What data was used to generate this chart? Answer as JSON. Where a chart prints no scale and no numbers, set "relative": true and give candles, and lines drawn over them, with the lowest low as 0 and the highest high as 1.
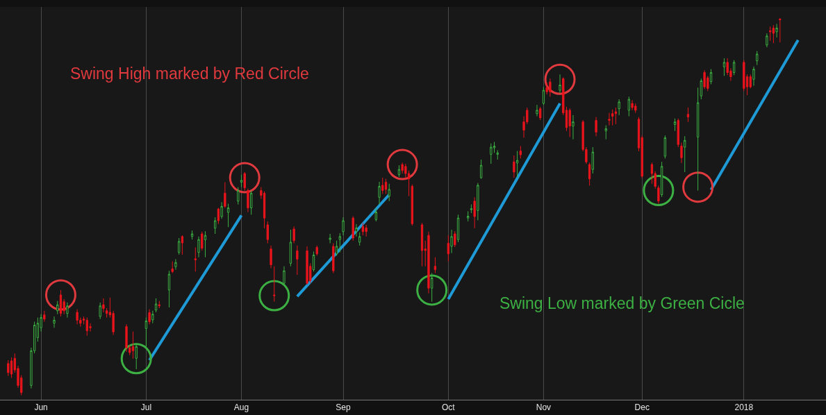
{
  "chart_data": {
    "type": "candlestick",
    "relative": true,
    "grid": "x",
    "annotations": [
      "Swing High marked by Red Circle",
      "Swing Low marked by Green Cicle"
    ],
    "xlim": [
      "2017-05-19T12:00",
      "2018-01-26"
    ],
    "xticks": [
      {
        "value": "2017-06-01",
        "label": "Jun"
      },
      {
        "value": "2017-07-03",
        "label": "Jul"
      },
      {
        "value": "2017-08-01",
        "label": "Aug"
      },
      {
        "value": "2017-09-01",
        "label": "Sep"
      },
      {
        "value": "2017-10-03",
        "label": "Oct"
      },
      {
        "value": "2017-11-01",
        "label": "Nov"
      },
      {
        "value": "2017-12-01",
        "label": "Dec"
      },
      {
        "value": "2018-01-01",
        "label": "2018"
      }
    ],
    "x": [
      "2017-05-22",
      "2017-05-23",
      "2017-05-24",
      "2017-05-25",
      "2017-05-26",
      "2017-05-29",
      "2017-05-30",
      "2017-05-31",
      "2017-06-01",
      "2017-06-02",
      "2017-06-05",
      "2017-06-06",
      "2017-06-07",
      "2017-06-08",
      "2017-06-09",
      "2017-06-12",
      "2017-06-13",
      "2017-06-14",
      "2017-06-15",
      "2017-06-16",
      "2017-06-19",
      "2017-06-20",
      "2017-06-21",
      "2017-06-22",
      "2017-06-23",
      "2017-06-27",
      "2017-06-28",
      "2017-06-29",
      "2017-06-30",
      "2017-07-03",
      "2017-07-04",
      "2017-07-05",
      "2017-07-06",
      "2017-07-07",
      "2017-07-10",
      "2017-07-11",
      "2017-07-12",
      "2017-07-13",
      "2017-07-14",
      "2017-07-17",
      "2017-07-18",
      "2017-07-19",
      "2017-07-20",
      "2017-07-21",
      "2017-07-24",
      "2017-07-25",
      "2017-07-26",
      "2017-07-27",
      "2017-07-28",
      "2017-07-31",
      "2017-08-01",
      "2017-08-02",
      "2017-08-03",
      "2017-08-04",
      "2017-08-07",
      "2017-08-08",
      "2017-08-09",
      "2017-08-10",
      "2017-08-11",
      "2017-08-14",
      "2017-08-16",
      "2017-08-17",
      "2017-08-18",
      "2017-08-21",
      "2017-08-22",
      "2017-08-23",
      "2017-08-24",
      "2017-08-28",
      "2017-08-29",
      "2017-08-30",
      "2017-08-31",
      "2017-09-01",
      "2017-09-04",
      "2017-09-05",
      "2017-09-06",
      "2017-09-07",
      "2017-09-08",
      "2017-09-11",
      "2017-09-12",
      "2017-09-13",
      "2017-09-14",
      "2017-09-15",
      "2017-09-18",
      "2017-09-19",
      "2017-09-20",
      "2017-09-21",
      "2017-09-22",
      "2017-09-25",
      "2017-09-26",
      "2017-09-27",
      "2017-09-28",
      "2017-09-29",
      "2017-10-03",
      "2017-10-04",
      "2017-10-05",
      "2017-10-06",
      "2017-10-09",
      "2017-10-10",
      "2017-10-11",
      "2017-10-12",
      "2017-10-13",
      "2017-10-16",
      "2017-10-17",
      "2017-10-18",
      "2017-10-23",
      "2017-10-24",
      "2017-10-25",
      "2017-10-26",
      "2017-10-27",
      "2017-10-30",
      "2017-10-31",
      "2017-11-01",
      "2017-11-02",
      "2017-11-03",
      "2017-11-06",
      "2017-11-07",
      "2017-11-08",
      "2017-11-09",
      "2017-11-10",
      "2017-11-13",
      "2017-11-14",
      "2017-11-15",
      "2017-11-16",
      "2017-11-17",
      "2017-11-20",
      "2017-11-21",
      "2017-11-22",
      "2017-11-23",
      "2017-11-24",
      "2017-11-27",
      "2017-11-28",
      "2017-11-29",
      "2017-11-30",
      "2017-12-01",
      "2017-12-04",
      "2017-12-05",
      "2017-12-06",
      "2017-12-07",
      "2017-12-08",
      "2017-12-11",
      "2017-12-12",
      "2017-12-13",
      "2017-12-14",
      "2017-12-15",
      "2017-12-18",
      "2017-12-19",
      "2017-12-20",
      "2017-12-21",
      "2017-12-22",
      "2017-12-26",
      "2017-12-27",
      "2017-12-28",
      "2017-12-29",
      "2018-01-01",
      "2018-01-02",
      "2018-01-03",
      "2018-01-04",
      "2018-01-05",
      "2018-01-08",
      "2018-01-09",
      "2018-01-10",
      "2018-01-11",
      "2018-01-12"
    ],
    "ohlc": [
      [
        0.084,
        0.093,
        0.051,
        0.06
      ],
      [
        0.091,
        0.1,
        0.046,
        0.056
      ],
      [
        0.098,
        0.111,
        0.06,
        0.067
      ],
      [
        0.071,
        0.078,
        0.02,
        0.026
      ],
      [
        0.046,
        0.053,
        0,
        0.007
      ],
      [
        0.026,
        0.126,
        0.018,
        0.118
      ],
      [
        0.118,
        0.195,
        0.111,
        0.186
      ],
      [
        0.153,
        0.206,
        0.142,
        0.191
      ],
      [
        0.179,
        0.215,
        0.169,
        0.206
      ],
      [
        0.213,
        0.224,
        0.195,
        0.202
      ],
      [
        0.191,
        0.209,
        0.179,
        0.199
      ],
      [
        0.224,
        0.25,
        0.215,
        0.24
      ],
      [
        0.266,
        0.279,
        0.209,
        0.217
      ],
      [
        0.248,
        0.255,
        0.215,
        0.224
      ],
      [
        0.217,
        0.246,
        0.206,
        0.237
      ],
      [
        0.22,
        0.228,
        0.188,
        0.199
      ],
      [
        0.199,
        0.206,
        0.182,
        0.191
      ],
      [
        0.202,
        0.209,
        0.188,
        0.199
      ],
      [
        0.199,
        0.206,
        0.158,
        0.171
      ],
      [
        0.182,
        0.191,
        0.169,
        0.179
      ],
      [
        0.209,
        0.246,
        0.202,
        0.237
      ],
      [
        0.24,
        0.257,
        0.22,
        0.23
      ],
      [
        0.224,
        0.231,
        0.206,
        0.217
      ],
      [
        0.22,
        0.259,
        0.206,
        0.213
      ],
      [
        0.217,
        0.224,
        0.16,
        0.168
      ],
      [
        0.182,
        0.188,
        0.115,
        0.126
      ],
      [
        0.126,
        0.133,
        0.106,
        0.113
      ],
      [
        0.129,
        0.169,
        0.097,
        0.118
      ],
      [
        0.098,
        0.137,
        0.069,
        0.129
      ],
      [
        0.177,
        0.206,
        0.129,
        0.197
      ],
      [
        0.219,
        0.228,
        0.188,
        0.195
      ],
      [
        0.2,
        0.224,
        0.191,
        0.215
      ],
      [
        0.226,
        0.257,
        0.22,
        0.242
      ],
      [
        0.24,
        0.25,
        0.231,
        0.237
      ],
      [
        0.279,
        0.33,
        0.233,
        0.321
      ],
      [
        0.335,
        0.355,
        0.324,
        0.328
      ],
      [
        0.341,
        0.361,
        0.333,
        0.352
      ],
      [
        0.379,
        0.417,
        0.373,
        0.408
      ],
      [
        0.421,
        0.424,
        0.373,
        0.404
      ],
      [
        0.421,
        0.437,
        0.413,
        0.428
      ],
      [
        0.362,
        0.392,
        0.328,
        0.359
      ],
      [
        0.379,
        0.421,
        0.366,
        0.413
      ],
      [
        0.428,
        0.434,
        0.384,
        0.39
      ],
      [
        0.412,
        0.435,
        0.366,
        0.424
      ],
      [
        0.443,
        0.472,
        0.428,
        0.463
      ],
      [
        0.494,
        0.497,
        0.454,
        0.463
      ],
      [
        0.474,
        0.512,
        0.468,
        0.501
      ],
      [
        0.536,
        0.565,
        0.497,
        0.501
      ],
      [
        0.485,
        0.508,
        0.446,
        0.497
      ],
      [
        0.515,
        0.552,
        0.506,
        0.543
      ],
      [
        0.565,
        0.585,
        0.552,
        0.57
      ],
      [
        0.588,
        0.592,
        0.543,
        0.55
      ],
      [
        0.543,
        0.548,
        0.486,
        0.497
      ],
      [
        0.497,
        0.543,
        0.479,
        0.536
      ],
      [
        0.543,
        0.552,
        0.521,
        0.53
      ],
      [
        0.536,
        0.541,
        0.443,
        0.47
      ],
      [
        0.452,
        0.461,
        0.403,
        0.413
      ],
      [
        0.388,
        0.397,
        0.337,
        0.346
      ],
      [
        0.266,
        0.342,
        0.248,
        0.264
      ],
      [
        0.297,
        0.342,
        0.293,
        0.33
      ],
      [
        0.35,
        0.439,
        0.342,
        0.406
      ],
      [
        0.441,
        0.448,
        0.403,
        0.41
      ],
      [
        0.383,
        0.397,
        0.319,
        0.361
      ],
      [
        0.383,
        0.395,
        0.293,
        0.297
      ],
      [
        0.342,
        0.35,
        0.297,
        0.304
      ],
      [
        0.333,
        0.381,
        0.328,
        0.372
      ],
      [
        0.392,
        0.397,
        0.37,
        0.375
      ],
      [
        0.413,
        0.428,
        0.403,
        0.417
      ],
      [
        0.395,
        0.403,
        0.324,
        0.33
      ],
      [
        0.375,
        0.41,
        0.37,
        0.395
      ],
      [
        0.413,
        0.43,
        0.379,
        0.421
      ],
      [
        0.434,
        0.472,
        0.424,
        0.463
      ],
      [
        0.47,
        0.475,
        0.41,
        0.417
      ],
      [
        0.434,
        0.454,
        0.421,
        0.444
      ],
      [
        0.406,
        0.432,
        0.397,
        0.421
      ],
      [
        0.448,
        0.457,
        0.424,
        0.434
      ],
      [
        0.444,
        0.452,
        0.421,
        0.434
      ],
      [
        0.466,
        0.497,
        0.461,
        0.486
      ],
      [
        0.525,
        0.566,
        0.506,
        0.554
      ],
      [
        0.557,
        0.577,
        0.534,
        0.543
      ],
      [
        0.565,
        0.574,
        0.534,
        0.546
      ],
      [
        0.528,
        0.561,
        0.515,
        0.546
      ],
      [
        0.585,
        0.61,
        0.579,
        0.599
      ],
      [
        0.612,
        0.617,
        0.588,
        0.596
      ],
      [
        0.607,
        0.614,
        0.574,
        0.588
      ],
      [
        0.588,
        0.596,
        0.528,
        0.574
      ],
      [
        0.554,
        0.559,
        0.45,
        0.455
      ],
      [
        0.452,
        0.457,
        0.342,
        0.384
      ],
      [
        0.388,
        0.41,
        0.342,
        0.384
      ],
      [
        0.424,
        0.434,
        0.27,
        0.284
      ],
      [
        0.284,
        0.324,
        0.248,
        0.311
      ],
      [
        0.342,
        0.366,
        0.324,
        0.333
      ],
      [
        0.403,
        0.424,
        0.355,
        0.375
      ],
      [
        0.395,
        0.439,
        0.377,
        0.421
      ],
      [
        0.428,
        0.435,
        0.393,
        0.399
      ],
      [
        0.413,
        0.479,
        0.406,
        0.47
      ],
      [
        0.47,
        0.488,
        0.461,
        0.475
      ],
      [
        0.492,
        0.506,
        0.483,
        0.495
      ],
      [
        0.515,
        0.525,
        0.443,
        0.474
      ],
      [
        0.49,
        0.563,
        0.464,
        0.557
      ],
      [
        0.577,
        0.625,
        0.574,
        0.61
      ],
      [
        0.639,
        0.668,
        0.614,
        0.658
      ],
      [
        0.656,
        0.672,
        0.643,
        0.661
      ],
      [
        0.639,
        0.65,
        0.625,
        0.643
      ],
      [
        0.619,
        0.636,
        0.577,
        0.592
      ],
      [
        0.616,
        0.648,
        0.577,
        0.623
      ],
      [
        0.648,
        0.661,
        0.628,
        0.638
      ],
      [
        0.725,
        0.74,
        0.683,
        0.703
      ],
      [
        0.756,
        0.763,
        0.719,
        0.725
      ],
      [
        0.747,
        0.77,
        0.74,
        0.756
      ],
      [
        0.76,
        0.765,
        0.73,
        0.736
      ],
      [
        0.774,
        0.818,
        0.77,
        0.809
      ],
      [
        0.816,
        0.829,
        0.798,
        0.805
      ],
      [
        0.831,
        0.84,
        0.792,
        0.805
      ],
      [
        0.809,
        0.851,
        0.801,
        0.823
      ],
      [
        0.84,
        0.843,
        0.743,
        0.749
      ],
      [
        0.756,
        0.765,
        0.701,
        0.71
      ],
      [
        0.756,
        0.761,
        0.685,
        0.714
      ],
      [
        0.714,
        0.743,
        0.679,
        0.725
      ],
      [
        0.725,
        0.73,
        0.647,
        0.652
      ],
      [
        0.652,
        0.658,
        0.614,
        0.619
      ],
      [
        0.612,
        0.617,
        0.556,
        0.574
      ],
      [
        0.599,
        0.658,
        0.588,
        0.645
      ],
      [
        0.729,
        0.738,
        0.687,
        0.698
      ],
      [
        0.701,
        0.716,
        0.679,
        0.707
      ],
      [
        0.732,
        0.749,
        0.716,
        0.729
      ],
      [
        0.747,
        0.758,
        0.716,
        0.74
      ],
      [
        0.752,
        0.763,
        0.719,
        0.747
      ],
      [
        0.76,
        0.785,
        0.743,
        0.778
      ],
      [
        0.756,
        0.792,
        0.74,
        0.785
      ],
      [
        0.774,
        0.783,
        0.756,
        0.763
      ],
      [
        0.767,
        0.774,
        0.749,
        0.756
      ],
      [
        0.732,
        0.738,
        0.647,
        0.656
      ],
      [
        0.683,
        0.689,
        0.576,
        0.581
      ],
      [
        0.612,
        0.617,
        0.561,
        0.588
      ],
      [
        0.588,
        0.594,
        0.548,
        0.554
      ],
      [
        0.55,
        0.556,
        0.508,
        0.515
      ],
      [
        0.532,
        0.619,
        0.526,
        0.607
      ],
      [
        0.634,
        0.689,
        0.628,
        0.683
      ],
      [
        0.718,
        0.734,
        0.701,
        0.725
      ],
      [
        0.729,
        0.734,
        0.658,
        0.665
      ],
      [
        0.661,
        0.67,
        0.616,
        0.63
      ],
      [
        0.658,
        0.687,
        0.592,
        0.676
      ],
      [
        0.745,
        0.763,
        0.725,
        0.738
      ],
      [
        0.685,
        0.816,
        0.543,
        0.776
      ],
      [
        0.794,
        0.84,
        0.785,
        0.834
      ],
      [
        0.856,
        0.862,
        0.812,
        0.818
      ],
      [
        0.842,
        0.847,
        0.807,
        0.814
      ],
      [
        0.832,
        0.865,
        0.825,
        0.856
      ],
      [
        0.871,
        0.894,
        0.847,
        0.883
      ],
      [
        0.883,
        0.894,
        0.849,
        0.856
      ],
      [
        0.86,
        0.867,
        0.834,
        0.845
      ],
      [
        0.856,
        0.889,
        0.849,
        0.883
      ],
      [
        0.883,
        0.889,
        0.807,
        0.814
      ],
      [
        0.845,
        0.851,
        0.796,
        0.818
      ],
      [
        0.845,
        0.851,
        0.814,
        0.818
      ],
      [
        0.838,
        0.872,
        0.821,
        0.865
      ],
      [
        0.887,
        0.913,
        0.876,
        0.905
      ],
      [
        0.929,
        0.96,
        0.923,
        0.953
      ],
      [
        0.967,
        0.978,
        0.94,
        0.964
      ],
      [
        0.974,
        0.982,
        0.934,
        0.96
      ],
      [
        0.964,
        0.985,
        0.949,
        0.974
      ],
      [
        0.998,
        1,
        0.936,
        0.996
      ]
    ],
    "series": [
      {
        "type": "line",
        "color": "#1e9bd7",
        "x": [
          "2017-07-04",
          "2017-08-01"
        ],
        "values": [
          0.093,
          0.477
        ]
      },
      {
        "type": "line",
        "color": "#1e9bd7",
        "x": [
          "2017-08-18",
          "2017-09-15"
        ],
        "values": [
          0.262,
          0.532
        ]
      },
      {
        "type": "line",
        "color": "#1e9bd7",
        "x": [
          "2017-10-03",
          "2017-11-06"
        ],
        "values": [
          0.255,
          0.774
        ]
      },
      {
        "type": "line",
        "color": "#1e9bd7",
        "x": [
          "2017-12-22",
          "2018-01-17T12:00"
        ],
        "values": [
          0.545,
          0.942
        ]
      },
      {
        "type": "scatter",
        "color": "#e0393e",
        "marker": "circle",
        "x": [
          "2017-06-07",
          "2017-08-02",
          "2017-09-19",
          "2017-11-06",
          "2017-12-18"
        ],
        "values": [
          0.266,
          0.577,
          0.612,
          0.838,
          0.552
        ]
      },
      {
        "type": "scatter",
        "color": "#3cb043",
        "marker": "circle",
        "x": [
          "2017-06-30",
          "2017-08-11",
          "2017-09-28",
          "2017-12-06"
        ],
        "values": [
          0.097,
          0.264,
          0.279,
          0.543
        ]
      }
    ]
  }
}
